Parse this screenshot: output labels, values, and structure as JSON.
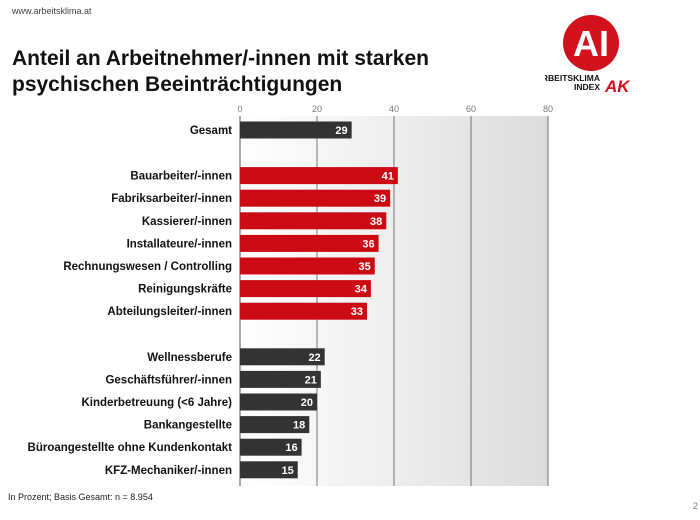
{
  "header": {
    "url": "www.arbeitsklima.at",
    "title_line1": "Anteil an Arbeitnehmer/-innen mit starken",
    "title_line2": "psychischen Beeinträchtigungen"
  },
  "logo": {
    "mark": "AI",
    "text_line1": "ARBEITSKLIMA",
    "text_line2": "INDEX",
    "brand": "AK",
    "color": "#d1111c"
  },
  "footer": {
    "note": "In Prozent; Basis Gesamt: n = 8.954",
    "page": "2"
  },
  "colors": {
    "dark": "#333333",
    "red": "#cc0a14"
  },
  "chart_data": {
    "type": "bar",
    "orientation": "horizontal",
    "xlim": [
      0,
      80
    ],
    "ticks": [
      0,
      20,
      40,
      60,
      80
    ],
    "grid": true,
    "value_labels": true,
    "groups": [
      {
        "color": "dark",
        "bars": [
          {
            "label": "Gesamt",
            "value": 29
          }
        ]
      },
      {
        "color": "red",
        "bars": [
          {
            "label": "Bauarbeiter/-innen",
            "value": 41
          },
          {
            "label": "Fabriksarbeiter/-innen",
            "value": 39
          },
          {
            "label": "Kassierer/-innen",
            "value": 38
          },
          {
            "label": "Installateure/-innen",
            "value": 36
          },
          {
            "label": "Rechnungswesen / Controlling",
            "value": 35
          },
          {
            "label": "Reinigungskräfte",
            "value": 34
          },
          {
            "label": "Abteilungsleiter/-innen",
            "value": 33
          }
        ]
      },
      {
        "color": "dark",
        "bars": [
          {
            "label": "Wellnessberufe",
            "value": 22
          },
          {
            "label": "Geschäftsführer/-innen",
            "value": 21
          },
          {
            "label": "Kinderbetreuung (<6 Jahre)",
            "value": 20
          },
          {
            "label": "Bankangestellte",
            "value": 18
          },
          {
            "label": "Büroangestellte ohne Kundenkontakt",
            "value": 16
          },
          {
            "label": "KFZ-Mechaniker/-innen",
            "value": 15
          }
        ]
      }
    ]
  }
}
